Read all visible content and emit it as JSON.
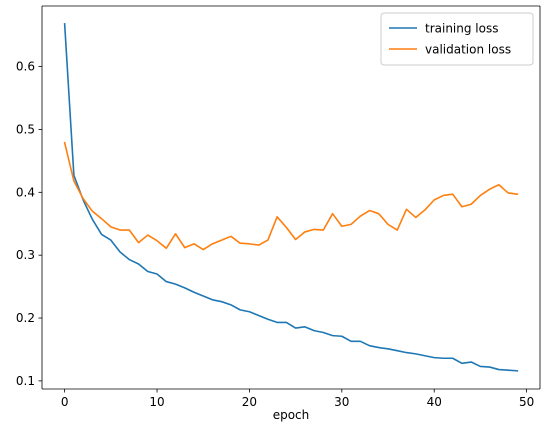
{
  "chart_data": {
    "type": "line",
    "xlabel": "epoch",
    "ylabel": "",
    "xlim": [
      -2.45,
      51.45
    ],
    "ylim": [
      0.0871,
      0.6964
    ],
    "xticks": [
      0,
      10,
      20,
      30,
      40,
      50
    ],
    "yticks": [
      0.1,
      0.2,
      0.3,
      0.4,
      0.5,
      0.6
    ],
    "legend_position": "top-right",
    "grid": false,
    "x": [
      0,
      1,
      2,
      3,
      4,
      5,
      6,
      7,
      8,
      9,
      10,
      11,
      12,
      13,
      14,
      15,
      16,
      17,
      18,
      19,
      20,
      21,
      22,
      23,
      24,
      25,
      26,
      27,
      28,
      29,
      30,
      31,
      32,
      33,
      34,
      35,
      36,
      37,
      38,
      39,
      40,
      41,
      42,
      43,
      44,
      45,
      46,
      47,
      48,
      49
    ],
    "series": [
      {
        "name": "training loss",
        "color": "#1f77b4",
        "values": [
          0.668,
          0.427,
          0.388,
          0.357,
          0.333,
          0.324,
          0.305,
          0.293,
          0.286,
          0.274,
          0.27,
          0.258,
          0.254,
          0.248,
          0.241,
          0.235,
          0.229,
          0.226,
          0.221,
          0.213,
          0.21,
          0.204,
          0.198,
          0.193,
          0.193,
          0.184,
          0.186,
          0.18,
          0.177,
          0.172,
          0.171,
          0.163,
          0.163,
          0.156,
          0.153,
          0.151,
          0.148,
          0.145,
          0.143,
          0.14,
          0.137,
          0.136,
          0.136,
          0.128,
          0.13,
          0.123,
          0.122,
          0.118,
          0.117,
          0.116
        ]
      },
      {
        "name": "validation loss",
        "color": "#ff7f0e",
        "values": [
          0.479,
          0.418,
          0.39,
          0.37,
          0.358,
          0.345,
          0.34,
          0.34,
          0.32,
          0.332,
          0.323,
          0.311,
          0.334,
          0.312,
          0.318,
          0.309,
          0.318,
          0.324,
          0.33,
          0.319,
          0.318,
          0.316,
          0.324,
          0.361,
          0.344,
          0.325,
          0.337,
          0.341,
          0.34,
          0.366,
          0.346,
          0.349,
          0.362,
          0.371,
          0.366,
          0.349,
          0.34,
          0.373,
          0.36,
          0.372,
          0.388,
          0.395,
          0.397,
          0.377,
          0.381,
          0.395,
          0.405,
          0.412,
          0.399,
          0.397
        ]
      }
    ]
  }
}
